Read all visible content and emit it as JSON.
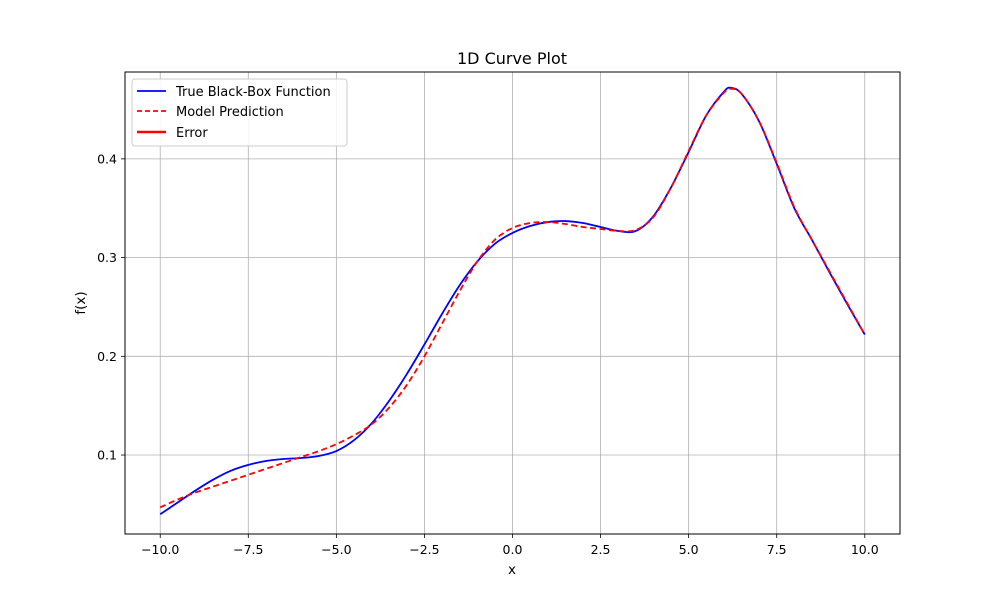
{
  "chart_data": {
    "type": "line",
    "title": "1D Curve Plot",
    "xlabel": "x",
    "ylabel": "f(x)",
    "xlim": [
      -11.0,
      11.0
    ],
    "ylim": [
      0.02,
      0.488
    ],
    "xticks": [
      -10.0,
      -7.5,
      -5.0,
      -2.5,
      0.0,
      2.5,
      5.0,
      7.5,
      10.0
    ],
    "xtick_labels": [
      "−10.0",
      "−7.5",
      "−5.0",
      "−2.5",
      "0.0",
      "2.5",
      "5.0",
      "7.5",
      "10.0"
    ],
    "yticks": [
      0.1,
      0.2,
      0.3,
      0.4
    ],
    "ytick_labels": [
      "0.1",
      "0.2",
      "0.3",
      "0.4"
    ],
    "grid": true,
    "legend_position": "top-left",
    "x": [
      -10.0,
      -9.5,
      -9.0,
      -8.5,
      -8.0,
      -7.5,
      -7.0,
      -6.5,
      -6.0,
      -5.5,
      -5.0,
      -4.5,
      -4.0,
      -3.5,
      -3.0,
      -2.5,
      -2.0,
      -1.5,
      -1.0,
      -0.5,
      0.0,
      0.5,
      1.0,
      1.5,
      2.0,
      2.5,
      3.0,
      3.5,
      4.0,
      4.5,
      5.0,
      5.5,
      6.0,
      6.2,
      6.5,
      7.0,
      7.5,
      8.0,
      8.5,
      9.0,
      9.5,
      10.0
    ],
    "series": [
      {
        "name": "True Black-Box Function",
        "color": "#0000ff",
        "style": "solid",
        "values": [
          0.04,
          0.052,
          0.064,
          0.075,
          0.084,
          0.09,
          0.094,
          0.096,
          0.097,
          0.099,
          0.104,
          0.115,
          0.132,
          0.155,
          0.182,
          0.212,
          0.243,
          0.272,
          0.296,
          0.314,
          0.325,
          0.332,
          0.336,
          0.337,
          0.335,
          0.331,
          0.327,
          0.327,
          0.342,
          0.371,
          0.407,
          0.444,
          0.468,
          0.472,
          0.466,
          0.438,
          0.395,
          0.35,
          0.318,
          0.285,
          0.253,
          0.222
        ]
      },
      {
        "name": "Model Prediction",
        "color": "#ff0000",
        "style": "dashed",
        "values": [
          0.047,
          0.055,
          0.062,
          0.068,
          0.074,
          0.08,
          0.086,
          0.092,
          0.098,
          0.104,
          0.111,
          0.12,
          0.131,
          0.148,
          0.171,
          0.2,
          0.233,
          0.266,
          0.296,
          0.318,
          0.33,
          0.335,
          0.336,
          0.334,
          0.331,
          0.329,
          0.327,
          0.328,
          0.341,
          0.371,
          0.408,
          0.444,
          0.467,
          0.471,
          0.466,
          0.438,
          0.396,
          0.351,
          0.318,
          0.286,
          0.254,
          0.222
        ]
      }
    ],
    "legend": [
      {
        "label": "True Black-Box Function",
        "color": "#0000ff",
        "style": "solid"
      },
      {
        "label": "Model Prediction",
        "color": "#ff0000",
        "style": "dashed"
      },
      {
        "label": "Error",
        "color": "#ff0000",
        "style": "thick"
      }
    ]
  }
}
